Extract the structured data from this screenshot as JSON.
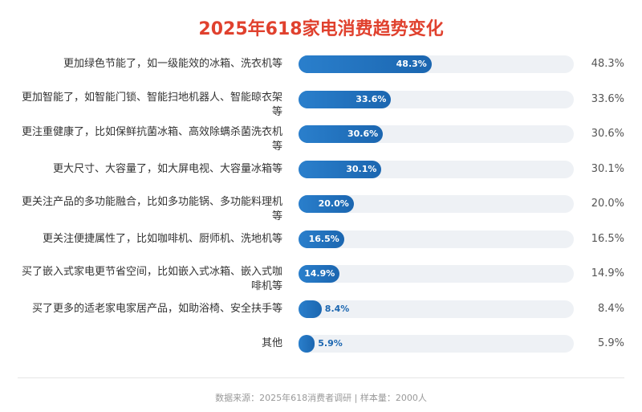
{
  "chart_data": {
    "type": "bar",
    "orientation": "horizontal",
    "title": "2025年618家电消费趋势变化",
    "categories": [
      "更加绿色节能了，如一级能效的冰箱、洗衣机等",
      "更加智能了，如智能门锁、智能扫地机器人、智能晾衣架等",
      "更注重健康了，比如保鲜抗菌冰箱、高效除螨杀菌洗衣机等",
      "更大尺寸、大容量了，如大屏电视、大容量冰箱等",
      "更关注产品的多功能融合，比如多功能锅、多功能料理机等",
      "更关注便捷属性了，比如咖啡机、厨师机、洗地机等",
      "买了嵌入式家电更节省空间，比如嵌入式冰箱、嵌入式咖啡机等",
      "买了更多的适老家电家居产品，如助浴椅、安全扶手等",
      "其他"
    ],
    "values": [
      48.3,
      33.6,
      30.6,
      30.1,
      20.0,
      16.5,
      14.9,
      8.4,
      5.9
    ],
    "value_labels": [
      "48.3%",
      "33.6%",
      "30.6%",
      "30.1%",
      "20.0%",
      "16.5%",
      "14.9%",
      "8.4%",
      "5.9%"
    ],
    "color": "#2a7fcc",
    "track_color": "#eef1f5",
    "xlim": [
      0,
      100
    ],
    "source": "数据来源：2025年618消费者调研 | 样本量：2000人"
  }
}
